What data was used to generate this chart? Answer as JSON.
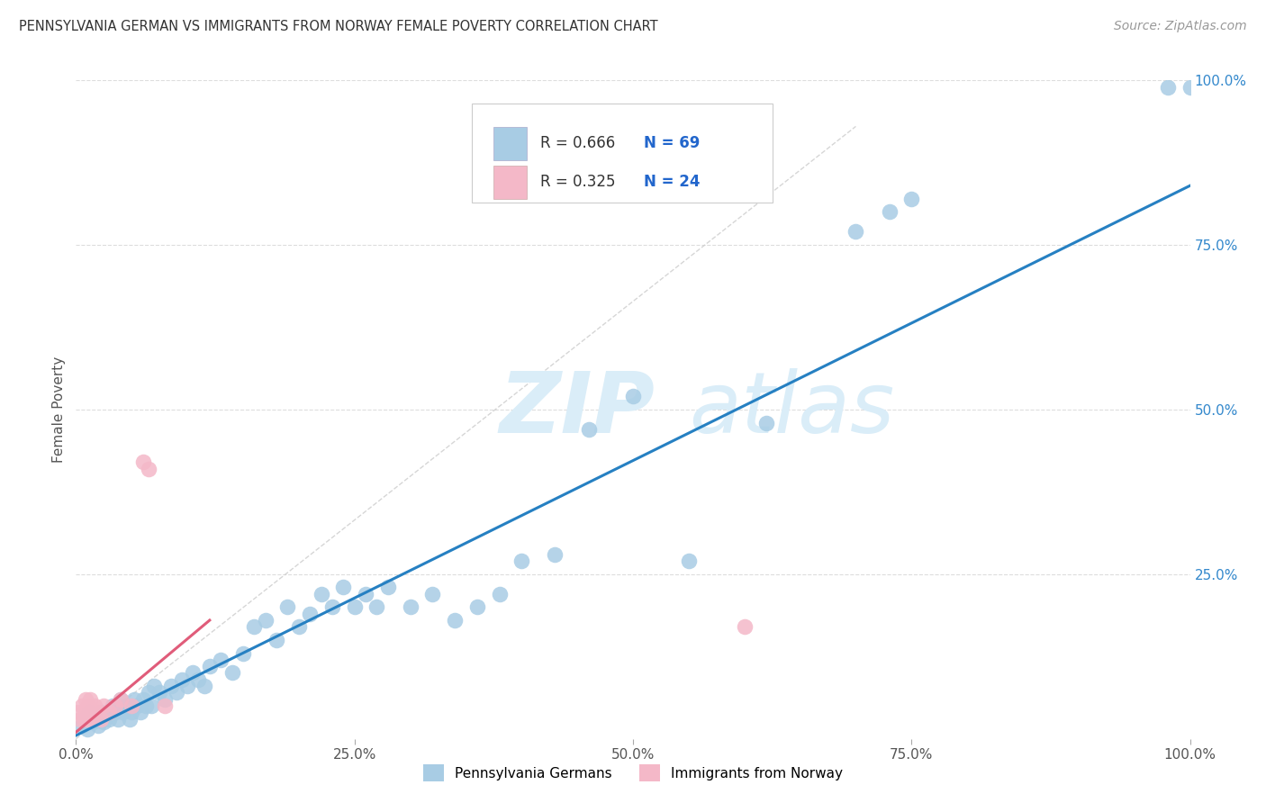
{
  "title": "PENNSYLVANIA GERMAN VS IMMIGRANTS FROM NORWAY FEMALE POVERTY CORRELATION CHART",
  "source": "Source: ZipAtlas.com",
  "ylabel": "Female Poverty",
  "xlim": [
    0,
    1.0
  ],
  "ylim": [
    0,
    1.0
  ],
  "xtick_labels": [
    "0.0%",
    "25.0%",
    "50.0%",
    "75.0%",
    "100.0%"
  ],
  "xtick_vals": [
    0.0,
    0.25,
    0.5,
    0.75,
    1.0
  ],
  "right_ytick_labels": [
    "25.0%",
    "50.0%",
    "75.0%",
    "100.0%"
  ],
  "right_ytick_vals": [
    0.25,
    0.5,
    0.75,
    1.0
  ],
  "grid_lines": [
    0.25,
    0.5,
    0.75,
    1.0
  ],
  "blue_color": "#a8cce4",
  "pink_color": "#f4b8c8",
  "blue_line_color": "#2680c2",
  "pink_line_color": "#e05c7a",
  "dashed_color": "#cccccc",
  "watermark_zip_color": "#daedf8",
  "watermark_atlas_color": "#daedf8",
  "legend_R1": "R = 0.666",
  "legend_N1": "N = 69",
  "legend_R2": "R = 0.325",
  "legend_N2": "N = 24",
  "legend_label1": "Pennsylvania Germans",
  "legend_label2": "Immigrants from Norway",
  "blue_scatter_x": [
    0.005,
    0.008,
    0.01,
    0.012,
    0.015,
    0.018,
    0.02,
    0.022,
    0.025,
    0.028,
    0.03,
    0.033,
    0.035,
    0.038,
    0.04,
    0.042,
    0.045,
    0.048,
    0.05,
    0.052,
    0.055,
    0.058,
    0.06,
    0.063,
    0.065,
    0.068,
    0.07,
    0.075,
    0.08,
    0.085,
    0.09,
    0.095,
    0.1,
    0.105,
    0.11,
    0.115,
    0.12,
    0.13,
    0.14,
    0.15,
    0.16,
    0.17,
    0.18,
    0.19,
    0.2,
    0.21,
    0.22,
    0.23,
    0.24,
    0.25,
    0.26,
    0.27,
    0.28,
    0.3,
    0.32,
    0.34,
    0.36,
    0.38,
    0.4,
    0.43,
    0.46,
    0.5,
    0.55,
    0.62,
    0.7,
    0.73,
    0.75,
    0.98,
    1.0
  ],
  "blue_scatter_y": [
    0.02,
    0.03,
    0.015,
    0.04,
    0.025,
    0.03,
    0.02,
    0.04,
    0.025,
    0.035,
    0.03,
    0.05,
    0.04,
    0.03,
    0.06,
    0.04,
    0.05,
    0.03,
    0.04,
    0.06,
    0.05,
    0.04,
    0.06,
    0.05,
    0.07,
    0.05,
    0.08,
    0.07,
    0.06,
    0.08,
    0.07,
    0.09,
    0.08,
    0.1,
    0.09,
    0.08,
    0.11,
    0.12,
    0.1,
    0.13,
    0.17,
    0.18,
    0.15,
    0.2,
    0.17,
    0.19,
    0.22,
    0.2,
    0.23,
    0.2,
    0.22,
    0.2,
    0.23,
    0.2,
    0.22,
    0.18,
    0.2,
    0.22,
    0.27,
    0.28,
    0.47,
    0.52,
    0.27,
    0.48,
    0.77,
    0.8,
    0.82,
    0.99,
    0.99
  ],
  "pink_scatter_x": [
    0.002,
    0.004,
    0.005,
    0.007,
    0.008,
    0.009,
    0.01,
    0.011,
    0.012,
    0.013,
    0.014,
    0.015,
    0.017,
    0.019,
    0.022,
    0.025,
    0.03,
    0.035,
    0.04,
    0.05,
    0.06,
    0.065,
    0.08,
    0.6
  ],
  "pink_scatter_y": [
    0.04,
    0.03,
    0.05,
    0.03,
    0.04,
    0.06,
    0.03,
    0.05,
    0.04,
    0.06,
    0.03,
    0.04,
    0.05,
    0.04,
    0.03,
    0.05,
    0.04,
    0.05,
    0.06,
    0.05,
    0.42,
    0.41,
    0.05,
    0.17
  ],
  "blue_line_x0": 0.0,
  "blue_line_x1": 1.0,
  "blue_line_y0": 0.005,
  "blue_line_y1": 0.84,
  "pink_line_x0": 0.0,
  "pink_line_x1": 0.12,
  "pink_line_y0": 0.01,
  "pink_line_y1": 0.18,
  "dashed_line_x0": 0.0,
  "dashed_line_x1": 0.7,
  "dashed_line_y0": 0.0,
  "dashed_line_y1": 0.93
}
